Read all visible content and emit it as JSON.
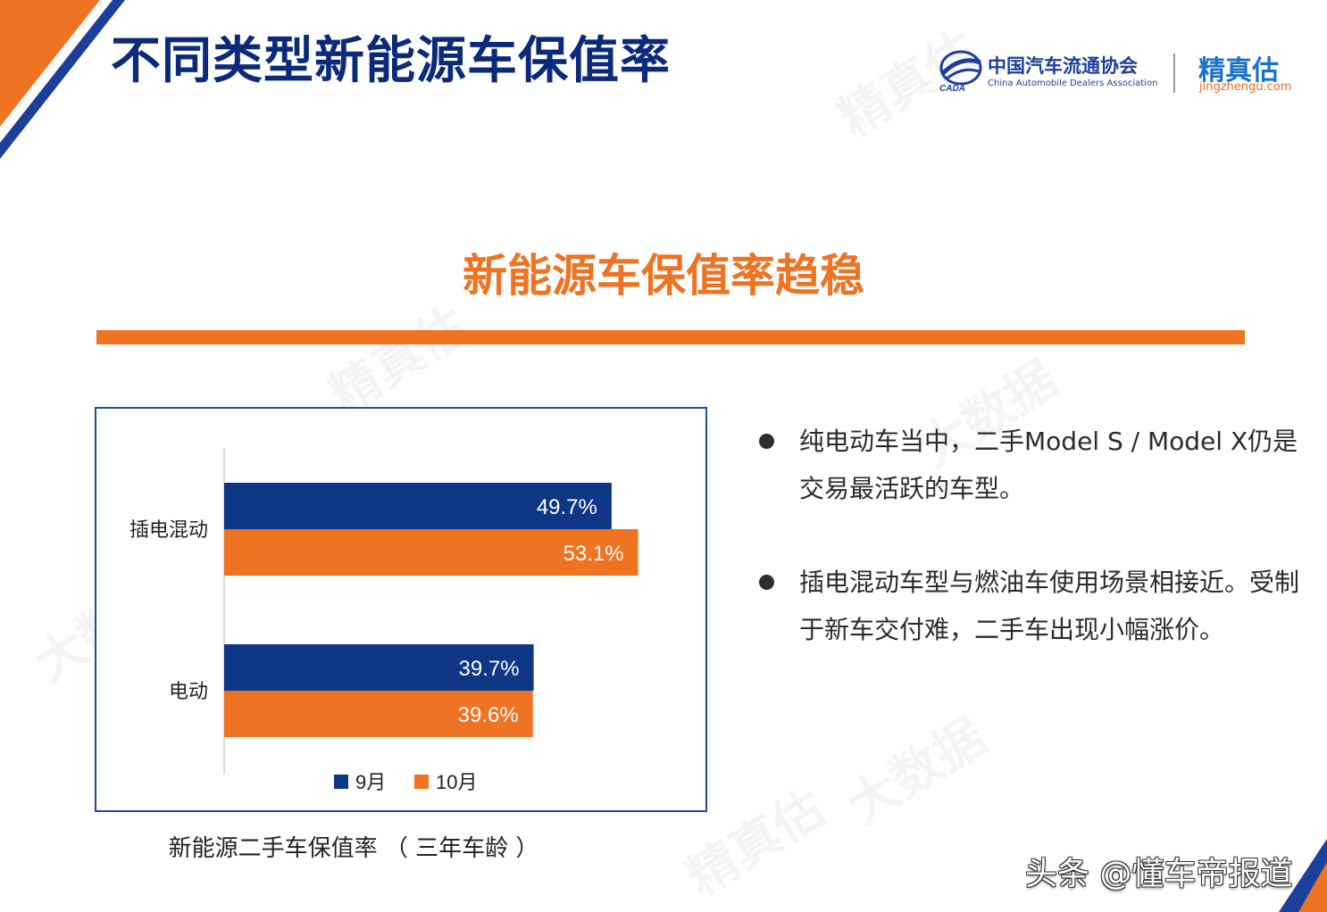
{
  "page_title": "不同类型新能源车保值率",
  "logo": {
    "association_cn": "中国汽车流通协会",
    "association_en": "China Automobile Dealers Association",
    "brand_cn": "精真估",
    "brand_url": "jingzhengu.com"
  },
  "headline": "新能源车保值率趋稳",
  "chart_caption": "新能源二手车保值率 （ 三年车龄 ）",
  "bullets": [
    "纯电动车当中，二手Model S / Model X仍是交易最活跃的车型。",
    "插电混动车型与燃油车使用场景相接近。受制于新车交付难，二手车出现小幅涨价。"
  ],
  "footer_watermark": "头条 @懂车帝报道",
  "chart_data": {
    "type": "bar",
    "orientation": "horizontal",
    "categories": [
      "插电混动",
      "电动"
    ],
    "series": [
      {
        "name": "9月",
        "values": [
          49.7,
          39.7
        ],
        "labels": [
          "49.7%",
          "39.7%"
        ],
        "color": "#0d3685"
      },
      {
        "name": "10月",
        "values": [
          53.1,
          39.6
        ],
        "labels": [
          "53.1%",
          "39.6%"
        ],
        "color": "#ee7322"
      }
    ],
    "value_unit": "%",
    "legend_position": "bottom",
    "grid": false
  },
  "colors": {
    "title": "#0c2a7a",
    "accent": "#ee7322",
    "navy": "#0d3685",
    "frame": "#1f4e9c"
  }
}
